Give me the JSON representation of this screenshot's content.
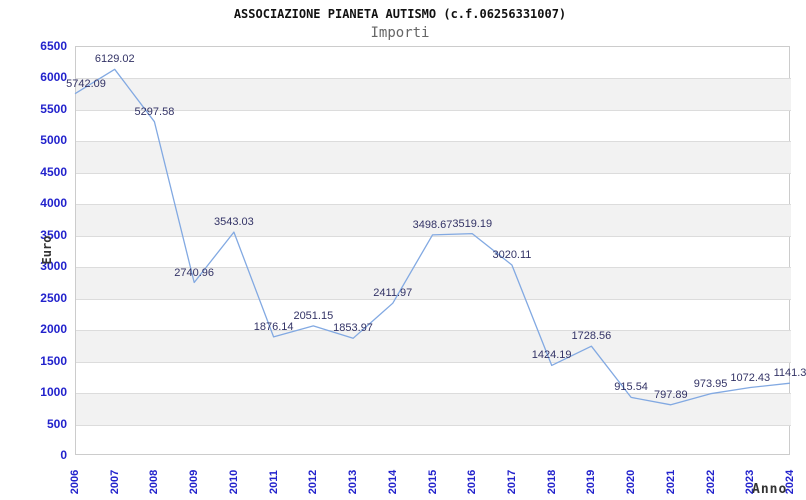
{
  "header": {
    "title": "ASSOCIAZIONE PIANETA AUTISMO (c.f.06256331007)",
    "subtitle": "Importi"
  },
  "chart_data": {
    "type": "line",
    "title": "ASSOCIAZIONE PIANETA AUTISMO (c.f.06256331007)",
    "subtitle": "Importi",
    "xlabel": "Anno",
    "ylabel": "Euro",
    "x": [
      2006,
      2007,
      2008,
      2009,
      2010,
      2011,
      2012,
      2013,
      2014,
      2015,
      2016,
      2017,
      2018,
      2019,
      2020,
      2021,
      2022,
      2023,
      2024
    ],
    "values": [
      5742.09,
      6129.02,
      5297.58,
      2740.96,
      3543.03,
      1876.14,
      2051.15,
      1853.97,
      2411.97,
      3498.67,
      3519.19,
      3020.11,
      1424.19,
      1728.56,
      915.54,
      797.89,
      973.95,
      1072.43,
      1141.3
    ],
    "point_labels": [
      "5742.09",
      "6129.02",
      "5297.58",
      "2740.96",
      "3543.03",
      "1876.14",
      "2051.15",
      "1853.97",
      "2411.97",
      "3498.67",
      "3519.19",
      "3020.11",
      "1424.19",
      "1728.56",
      "915.54",
      "797.89",
      "973.95",
      "1072.43",
      "1141.3"
    ],
    "ylim": [
      0,
      6500
    ],
    "yticks": [
      0,
      500,
      1000,
      1500,
      2000,
      2500,
      3000,
      3500,
      4000,
      4500,
      5000,
      5500,
      6000,
      6500
    ],
    "grid": "horizontal",
    "background_bands": true,
    "legend": "none",
    "colors": {
      "line": "#82a9e2",
      "point_label": "#333366",
      "tick_label": "#2222cc",
      "band": "#f2f2f2",
      "gridline": "#dcdcdc",
      "plot_border": "#cccccc",
      "title": "#111111",
      "subtitle": "#666666",
      "axis_title": "#333333"
    }
  }
}
